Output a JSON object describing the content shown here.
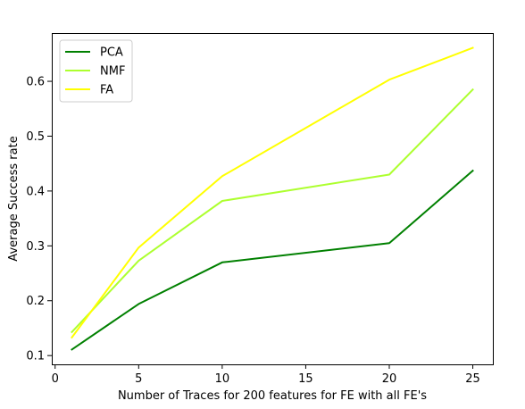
{
  "chart_data": {
    "type": "line",
    "title": "",
    "xlabel": "Number of Traces for 200 features for FE with all FE's",
    "ylabel": "Average Success rate",
    "x": [
      1,
      5,
      10,
      20,
      25
    ],
    "xlim": [
      -0.2,
      26.2
    ],
    "ylim": [
      0.084,
      0.688
    ],
    "xticks": [
      0,
      5,
      10,
      15,
      20,
      25
    ],
    "yticks": [
      0.1,
      0.2,
      0.3,
      0.4,
      0.5,
      0.6
    ],
    "xtick_labels": [
      "0",
      "5",
      "10",
      "15",
      "20",
      "25"
    ],
    "ytick_labels": [
      "0.1",
      "0.2",
      "0.3",
      "0.4",
      "0.5",
      "0.6"
    ],
    "grid": false,
    "legend_position": "top-left",
    "series": [
      {
        "name": "PCA",
        "color": "#008000",
        "values": [
          0.111,
          0.194,
          0.27,
          0.305,
          0.437
        ]
      },
      {
        "name": "NMF",
        "color": "#adff2f",
        "values": [
          0.143,
          0.273,
          0.382,
          0.43,
          0.585
        ]
      },
      {
        "name": "FA",
        "color": "#ffff00",
        "values": [
          0.133,
          0.297,
          0.427,
          0.603,
          0.661
        ]
      }
    ]
  }
}
